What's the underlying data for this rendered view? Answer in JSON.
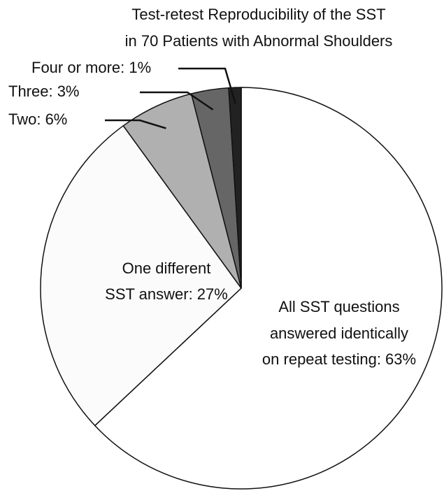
{
  "chart_data": {
    "type": "pie",
    "title": [
      "Test-retest Reproducibility of the SST",
      "in 70 Patients with Abnormal Shoulders"
    ],
    "values": [
      63,
      27,
      6,
      3,
      1
    ],
    "value_labels": [
      [
        "All SST questions",
        "answered identically",
        "on repeat testing: 63%"
      ],
      [
        "One different",
        "SST answer: 27%"
      ],
      [
        "Two: 6%"
      ],
      [
        "Three: 3%"
      ],
      [
        "Four or more: 1%"
      ]
    ],
    "colors": [
      "#ffffff",
      "#fbfbfb",
      "#b0b0b0",
      "#666666",
      "#222222"
    ]
  }
}
